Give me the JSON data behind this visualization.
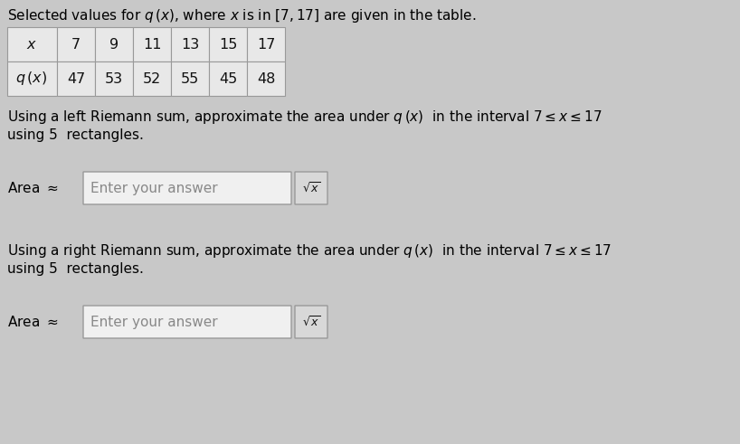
{
  "title_text": "Selected values for $q\\,(x)$, where $x$ is in $[7, 17]$ are given in the table.",
  "table_x_label": "$x$",
  "table_qx_label": "$q\\,(x)$",
  "x_values": [
    "7",
    "9",
    "11",
    "13",
    "15",
    "17"
  ],
  "q_values": [
    "47",
    "53",
    "52",
    "55",
    "45",
    "48"
  ],
  "left_riemann_line1": "Using a left Riemann sum, approximate the area under $q\\,(x)$  in the interval $7 \\leq x \\leq 17$",
  "left_riemann_line2": "using 5  rectangles.",
  "left_area_label": "Area $\\approx$",
  "left_placeholder": "Enter your answer",
  "right_riemann_line1": "Using a right Riemann sum, approximate the area under $q\\,(x)$  in the interval $7 \\leq x \\leq 17$",
  "right_riemann_line2": "using 5  rectangles.",
  "right_area_label": "Area $\\approx$",
  "right_placeholder": "Enter your answer",
  "sqrt_symbol": "$\\sqrt{x}$",
  "bg_color": "#c8c8c8",
  "text_color": "#111111",
  "table_bg": "#e8e8e8",
  "table_border": "#999999",
  "input_bg": "#f0f0f0",
  "input_border": "#999999",
  "sqrt_bg": "#d8d8d8",
  "sqrt_border": "#999999",
  "placeholder_color": "#888888",
  "font_size": 11.0,
  "table_font_size": 11.5
}
